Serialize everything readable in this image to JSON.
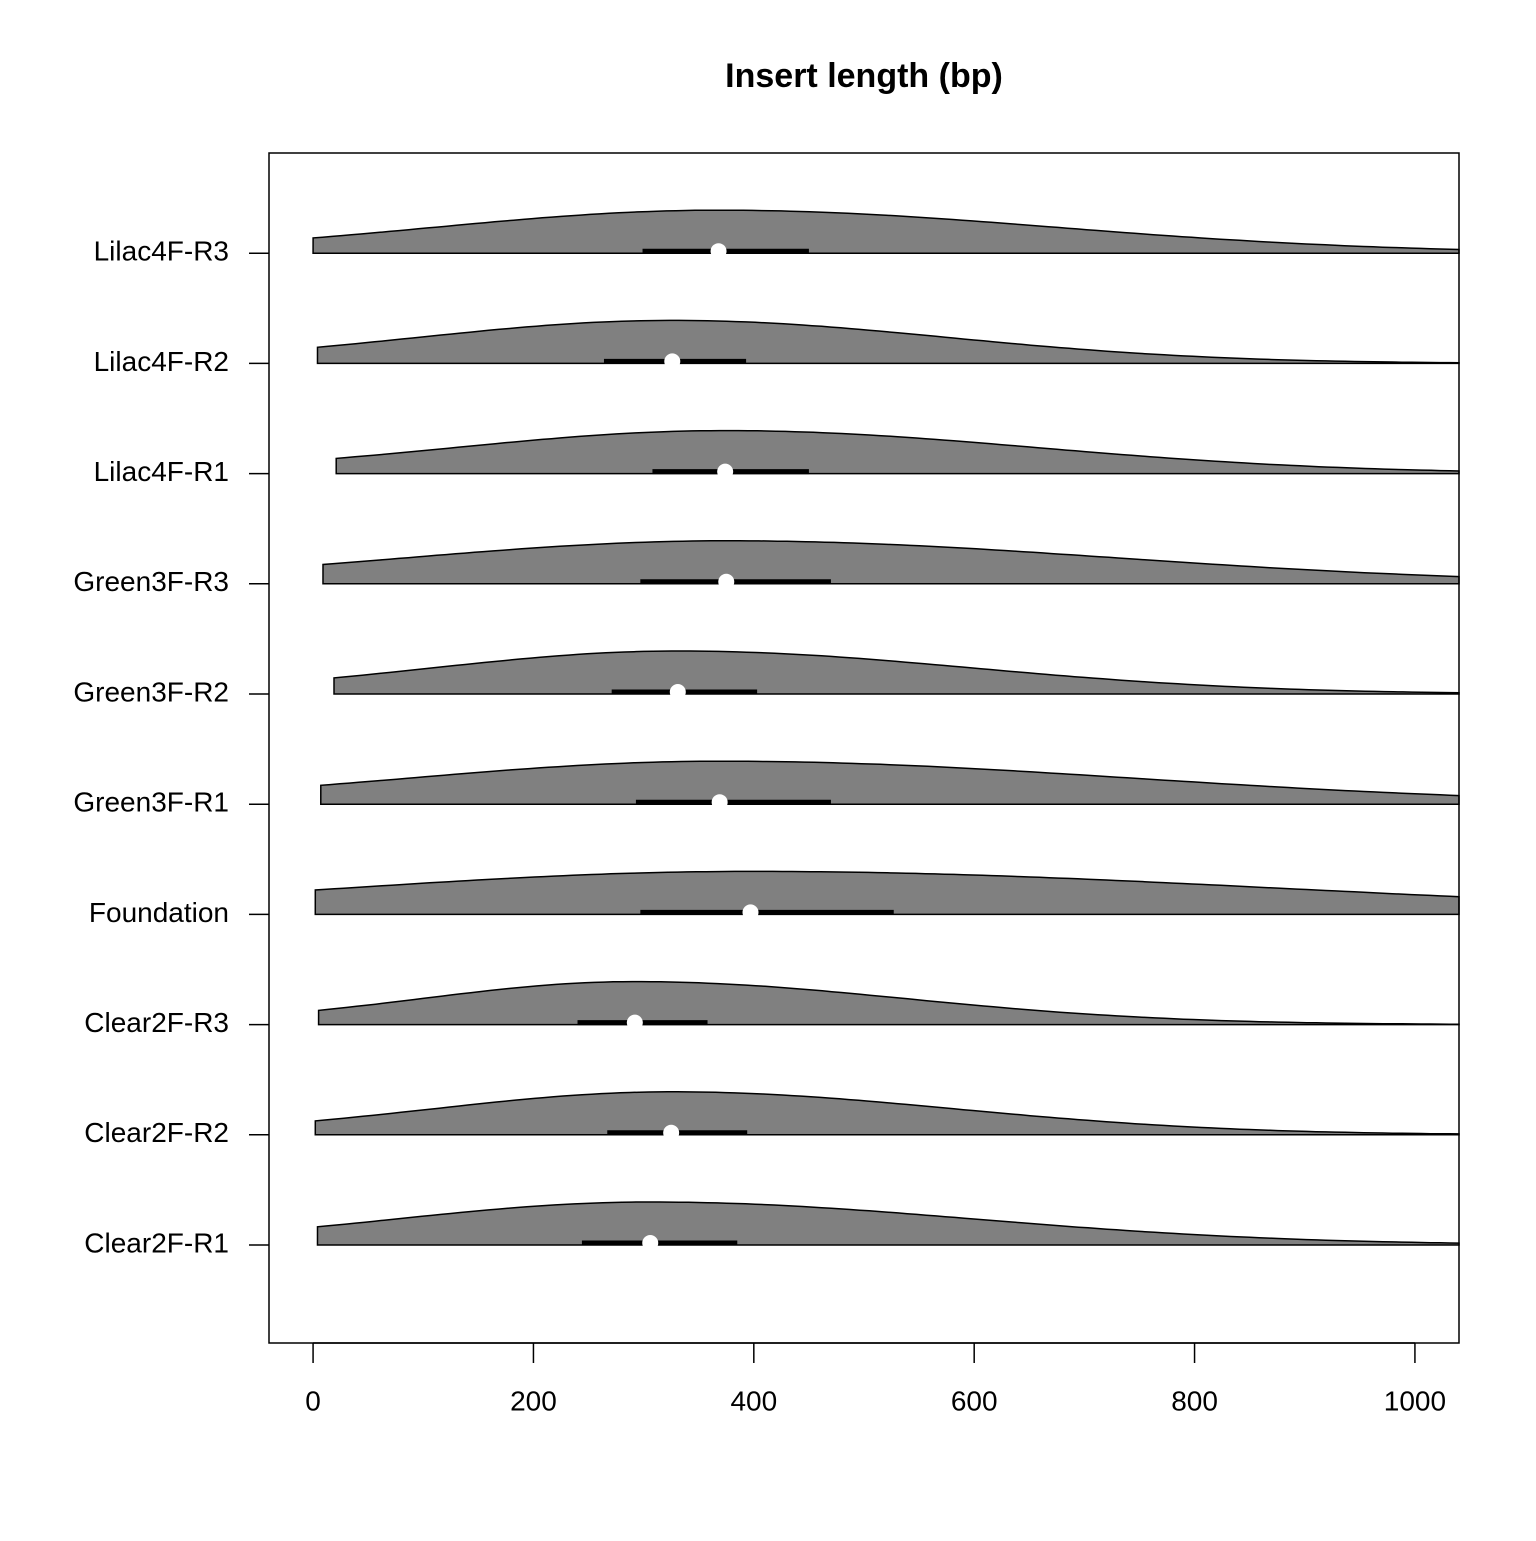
{
  "chart_data": {
    "type": "beanplot",
    "title": "Insert length (bp)",
    "orientation": "horizontal",
    "categories": [
      "Clear2F-R1",
      "Clear2F-R2",
      "Clear2F-R3",
      "Foundation",
      "Green3F-R1",
      "Green3F-R2",
      "Green3F-R3",
      "Lilac4F-R1",
      "Lilac4F-R2",
      "Lilac4F-R3"
    ],
    "min": [
      4,
      2,
      5,
      2,
      7,
      19,
      9,
      21,
      4,
      0
    ],
    "q1": [
      244,
      267,
      240,
      297,
      293,
      271,
      297,
      308,
      264,
      299
    ],
    "median": [
      306,
      325,
      292,
      397,
      369,
      331,
      375,
      374,
      326,
      368
    ],
    "q3": [
      385,
      394,
      358,
      527,
      470,
      403,
      470,
      450,
      393,
      450
    ],
    "color": "#808080",
    "median_color": "#ffffff",
    "xlim": [
      -40,
      1040
    ],
    "xticks": [
      0,
      200,
      400,
      600,
      800,
      1000
    ]
  }
}
